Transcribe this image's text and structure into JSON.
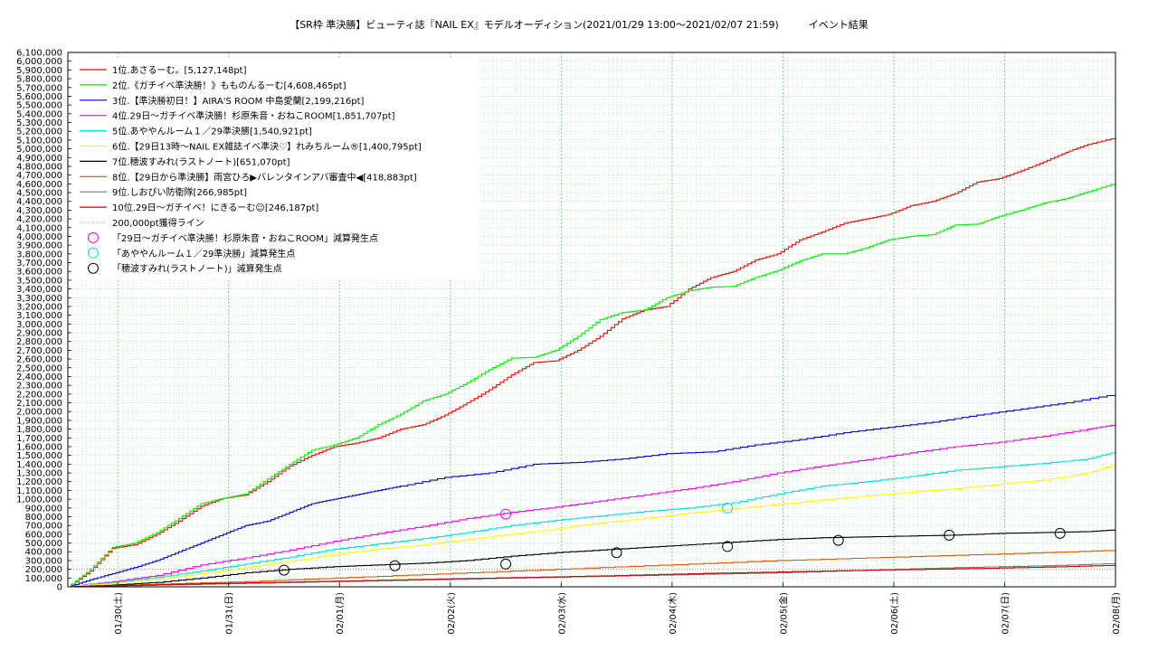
{
  "chart_data": {
    "type": "line",
    "title": "【SR枠 準決勝】ビューティ誌『NAIL EX』モデルオーディション(2021/01/29 13:00〜2021/02/07 21:59)　　　イベント結果",
    "xlabel": "",
    "ylabel": "",
    "ylim": [
      0,
      6100000
    ],
    "yticks": [
      "0",
      "100,000",
      "200,000",
      "300,000",
      "400,000",
      "500,000",
      "600,000",
      "700,000",
      "800,000",
      "900,000",
      "1,000,000",
      "1,100,000",
      "1,200,000",
      "1,300,000",
      "1,400,000",
      "1,500,000",
      "1,600,000",
      "1,700,000",
      "1,800,000",
      "1,900,000",
      "2,000,000",
      "2,100,000",
      "2,200,000",
      "2,300,000",
      "2,400,000",
      "2,500,000",
      "2,600,000",
      "2,700,000",
      "2,800,000",
      "2,900,000",
      "3,000,000",
      "3,100,000",
      "3,200,000",
      "3,300,000",
      "3,400,000",
      "3,500,000",
      "3,600,000",
      "3,700,000",
      "3,800,000",
      "3,900,000",
      "4,000,000",
      "4,100,000",
      "4,200,000",
      "4,300,000",
      "4,400,000",
      "4,500,000",
      "4,600,000",
      "4,700,000",
      "4,800,000",
      "4,900,000",
      "5,000,000",
      "5,100,000",
      "5,200,000",
      "5,300,000",
      "5,400,000",
      "5,500,000",
      "5,600,000",
      "5,700,000",
      "5,800,000",
      "5,900,000",
      "6,000,000",
      "6,100,000"
    ],
    "xlim": [
      0,
      9.45
    ],
    "xticks": [
      {
        "x": 0.45,
        "label": "01/30(土)"
      },
      {
        "x": 1.45,
        "label": "01/31(日)"
      },
      {
        "x": 2.45,
        "label": "02/01(月)"
      },
      {
        "x": 3.45,
        "label": "02/02(火)"
      },
      {
        "x": 4.45,
        "label": "02/03(水)"
      },
      {
        "x": 5.45,
        "label": "02/04(木)"
      },
      {
        "x": 6.45,
        "label": "02/05(金)"
      },
      {
        "x": 7.45,
        "label": "02/06(土)"
      },
      {
        "x": 8.45,
        "label": "02/07(日)"
      },
      {
        "x": 9.45,
        "label": "02/08(月)"
      }
    ],
    "grid": true,
    "legend_position": "top-left",
    "series": [
      {
        "name": "1位.あさるーむ。[5,127,148pt]",
        "color": "#ff0000",
        "x": [
          0,
          0.2,
          0.4,
          0.6,
          0.8,
          1.0,
          1.2,
          1.4,
          1.6,
          1.8,
          2.0,
          2.2,
          2.4,
          2.6,
          2.8,
          3.0,
          3.2,
          3.4,
          3.6,
          3.8,
          4.0,
          4.2,
          4.4,
          4.6,
          4.8,
          5.0,
          5.2,
          5.4,
          5.6,
          5.8,
          6.0,
          6.2,
          6.4,
          6.6,
          6.8,
          7.0,
          7.2,
          7.4,
          7.6,
          7.8,
          8.0,
          8.2,
          8.4,
          8.6,
          8.8,
          9.0,
          9.2,
          9.45
        ],
        "y": [
          0,
          180000,
          440000,
          480000,
          600000,
          750000,
          920000,
          1010000,
          1050000,
          1200000,
          1380000,
          1500000,
          1600000,
          1640000,
          1700000,
          1800000,
          1850000,
          1960000,
          2100000,
          2250000,
          2420000,
          2560000,
          2580000,
          2700000,
          2860000,
          3060000,
          3160000,
          3200000,
          3400000,
          3530000,
          3600000,
          3730000,
          3800000,
          3960000,
          4050000,
          4150000,
          4200000,
          4250000,
          4350000,
          4400000,
          4490000,
          4620000,
          4660000,
          4750000,
          4850000,
          4960000,
          5050000,
          5127148
        ]
      },
      {
        "name": "2位.《ガチイベ準決勝！》もものんるーむ[4,608,465pt]",
        "color": "#00ee00",
        "x": [
          0,
          0.2,
          0.4,
          0.6,
          0.8,
          1.0,
          1.2,
          1.4,
          1.6,
          1.8,
          2.0,
          2.2,
          2.4,
          2.6,
          2.8,
          3.0,
          3.2,
          3.4,
          3.6,
          3.8,
          4.0,
          4.2,
          4.4,
          4.6,
          4.8,
          5.0,
          5.2,
          5.4,
          5.6,
          5.8,
          6.0,
          6.2,
          6.4,
          6.6,
          6.8,
          7.0,
          7.2,
          7.4,
          7.6,
          7.8,
          8.0,
          8.2,
          8.4,
          8.6,
          8.8,
          9.0,
          9.2,
          9.45
        ],
        "y": [
          0,
          200000,
          450000,
          500000,
          620000,
          780000,
          950000,
          1010000,
          1060000,
          1230000,
          1400000,
          1560000,
          1620000,
          1700000,
          1850000,
          1970000,
          2120000,
          2200000,
          2330000,
          2480000,
          2610000,
          2620000,
          2700000,
          2860000,
          3050000,
          3130000,
          3160000,
          3300000,
          3380000,
          3420000,
          3430000,
          3530000,
          3610000,
          3720000,
          3800000,
          3800000,
          3870000,
          3960000,
          4000000,
          4020000,
          4130000,
          4140000,
          4230000,
          4300000,
          4380000,
          4430000,
          4510000,
          4608465
        ]
      },
      {
        "name": "3位.【準決勝初日！】AIRA'S ROOM 中島愛蘭[2,199,216pt]",
        "color": "#0000dd",
        "x": [
          0,
          0.2,
          0.4,
          0.6,
          0.8,
          1.0,
          1.2,
          1.4,
          1.6,
          1.8,
          2.0,
          2.2,
          2.4,
          2.6,
          2.8,
          3.0,
          3.4,
          3.8,
          4.2,
          4.6,
          5.0,
          5.4,
          5.8,
          6.2,
          6.6,
          7.0,
          7.4,
          7.8,
          8.2,
          8.6,
          9.0,
          9.45
        ],
        "y": [
          0,
          80000,
          150000,
          220000,
          300000,
          400000,
          500000,
          600000,
          700000,
          750000,
          850000,
          950000,
          1000000,
          1050000,
          1100000,
          1150000,
          1250000,
          1300000,
          1400000,
          1420000,
          1460000,
          1520000,
          1540000,
          1620000,
          1680000,
          1760000,
          1820000,
          1880000,
          1960000,
          2030000,
          2100000,
          2199216
        ]
      },
      {
        "name": "4位.29日〜ガチイベ準決勝！杉原朱音・おねこROOM[1,851,707pt]",
        "color": "#ee00ee",
        "x": [
          0,
          0.4,
          0.8,
          1.2,
          1.6,
          2.0,
          2.4,
          2.8,
          3.2,
          3.6,
          4.0,
          4.4,
          4.8,
          5.2,
          5.6,
          6.0,
          6.4,
          6.8,
          7.2,
          7.6,
          8.0,
          8.4,
          8.8,
          9.2,
          9.45
        ],
        "y": [
          0,
          60000,
          130000,
          250000,
          330000,
          420000,
          520000,
          610000,
          690000,
          780000,
          850000,
          910000,
          980000,
          1050000,
          1120000,
          1200000,
          1300000,
          1380000,
          1450000,
          1530000,
          1600000,
          1650000,
          1720000,
          1800000,
          1851707
        ]
      },
      {
        "name": "5位.あややんルーム１／29準決勝[1,540,921pt]",
        "color": "#00dddd",
        "x": [
          0,
          0.4,
          0.8,
          1.2,
          1.6,
          2.0,
          2.4,
          2.8,
          3.2,
          3.6,
          4.0,
          4.4,
          4.8,
          5.2,
          5.6,
          6.0,
          6.4,
          6.8,
          7.2,
          7.6,
          8.0,
          8.4,
          8.8,
          9.2,
          9.45
        ],
        "y": [
          0,
          50000,
          110000,
          180000,
          260000,
          340000,
          430000,
          490000,
          550000,
          620000,
          700000,
          760000,
          810000,
          860000,
          900000,
          960000,
          1060000,
          1150000,
          1200000,
          1260000,
          1330000,
          1370000,
          1410000,
          1460000,
          1540921
        ]
      },
      {
        "name": "6位.【29日13時〜NAIL EX雑誌イベ準決♡】れみちルーム®[1,400,795pt]",
        "color": "#ffff00",
        "x": [
          0,
          0.4,
          0.8,
          1.2,
          1.6,
          2.0,
          2.4,
          2.8,
          3.2,
          3.6,
          4.0,
          4.4,
          4.8,
          5.2,
          5.6,
          6.0,
          6.4,
          6.8,
          7.2,
          7.6,
          8.0,
          8.4,
          8.8,
          9.2,
          9.45
        ],
        "y": [
          0,
          40000,
          90000,
          150000,
          220000,
          290000,
          370000,
          430000,
          480000,
          540000,
          600000,
          660000,
          730000,
          780000,
          840000,
          890000,
          940000,
          990000,
          1040000,
          1080000,
          1120000,
          1170000,
          1220000,
          1300000,
          1400795
        ]
      },
      {
        "name": "7位.穂波すみれ(ラストノート)[651,070pt]",
        "color": "#000000",
        "x": [
          0,
          0.4,
          0.8,
          1.2,
          1.6,
          2.0,
          2.4,
          2.8,
          3.2,
          3.6,
          4.0,
          4.4,
          4.8,
          5.2,
          5.6,
          6.0,
          6.4,
          6.8,
          7.2,
          7.6,
          8.0,
          8.4,
          8.8,
          9.2,
          9.45
        ],
        "y": [
          0,
          20000,
          50000,
          100000,
          160000,
          200000,
          230000,
          250000,
          270000,
          300000,
          350000,
          390000,
          420000,
          450000,
          480000,
          510000,
          540000,
          560000,
          570000,
          580000,
          590000,
          610000,
          620000,
          630000,
          651070
        ]
      },
      {
        "name": "8位.【29日から準決勝】雨宮ひろ▶バレンタインアバ審査中◀[418,883pt]",
        "color": "#dd5500",
        "x": [
          0,
          0.8,
          1.6,
          2.4,
          3.2,
          4.0,
          4.8,
          5.6,
          6.4,
          7.2,
          8.0,
          8.8,
          9.45
        ],
        "y": [
          0,
          30000,
          60000,
          100000,
          140000,
          180000,
          220000,
          260000,
          300000,
          330000,
          360000,
          390000,
          418883
        ]
      },
      {
        "name": "9位.しおぴい防衛隊[266,985pt]",
        "color": "#777777",
        "x": [
          0,
          0.8,
          1.6,
          2.4,
          3.2,
          4.0,
          4.8,
          5.6,
          6.4,
          7.2,
          8.0,
          8.8,
          9.45
        ],
        "y": [
          0,
          20000,
          40000,
          60000,
          80000,
          100000,
          120000,
          140000,
          160000,
          190000,
          220000,
          240000,
          266985
        ]
      },
      {
        "name": "10位.29日〜ガチイベ！にきるーむ☺[246,187pt]",
        "color": "#cc0000",
        "x": [
          0,
          0.8,
          1.6,
          2.4,
          3.2,
          4.0,
          4.8,
          5.6,
          6.4,
          7.2,
          8.0,
          8.8,
          9.45
        ],
        "y": [
          0,
          25000,
          45000,
          65000,
          85000,
          105000,
          125000,
          150000,
          170000,
          190000,
          205000,
          225000,
          246187
        ]
      }
    ],
    "reference_line": {
      "name": "200,000pt獲得ライン",
      "color": "#cc8844",
      "y": 200000
    },
    "markers": [
      {
        "name": "「29日〜ガチイベ準決勝！杉原朱音・おねこROOM」減算発生点",
        "color": "#ee00ee",
        "points": [
          {
            "x": 3.95,
            "y": 830000
          }
        ]
      },
      {
        "name": "「あややんルーム１／29準決勝」減算発生点",
        "color": "#00dddd",
        "points": [
          {
            "x": 5.95,
            "y": 900000
          }
        ]
      },
      {
        "name": "「穂波すみれ(ラストノート)」減算発生点",
        "color": "#000000",
        "points": [
          {
            "x": 1.95,
            "y": 190000
          },
          {
            "x": 2.95,
            "y": 240000
          },
          {
            "x": 3.95,
            "y": 260000
          },
          {
            "x": 4.95,
            "y": 390000
          },
          {
            "x": 5.95,
            "y": 460000
          },
          {
            "x": 6.95,
            "y": 530000
          },
          {
            "x": 7.95,
            "y": 590000
          },
          {
            "x": 8.95,
            "y": 610000
          }
        ]
      }
    ]
  }
}
